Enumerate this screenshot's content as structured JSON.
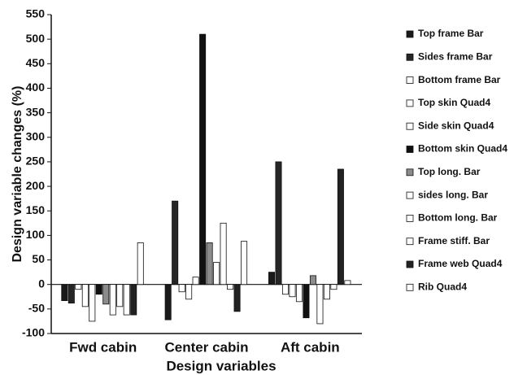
{
  "chart_data": {
    "type": "bar",
    "y_label": "Design variable changes (%)",
    "x_label": "Design variables",
    "categories": [
      "Fwd cabin",
      "Center cabin",
      "Aft cabin"
    ],
    "series": [
      {
        "name": "Top frame Bar",
        "color": "#1a1a1a",
        "values": [
          -33,
          -72,
          25
        ]
      },
      {
        "name": "Sides frame Bar",
        "color": "#262626",
        "values": [
          -38,
          170,
          250
        ]
      },
      {
        "name": "Bottom frame Bar",
        "color": "#ffffff",
        "values": [
          -10,
          -15,
          -20
        ]
      },
      {
        "name": "Top skin Quad4",
        "color": "#ffffff",
        "values": [
          -45,
          -30,
          -25
        ]
      },
      {
        "name": "Side skin Quad4",
        "color": "#ffffff",
        "values": [
          -75,
          15,
          -35
        ]
      },
      {
        "name": "Bottom skin Quad4",
        "color": "#111111",
        "values": [
          -20,
          510,
          -68
        ]
      },
      {
        "name": "Top long. Bar",
        "color": "#8c8c8c",
        "values": [
          -40,
          85,
          18
        ]
      },
      {
        "name": "sides long. Bar",
        "color": "#ffffff",
        "values": [
          -62,
          45,
          -80
        ]
      },
      {
        "name": "Bottom long. Bar",
        "color": "#ffffff",
        "values": [
          -45,
          125,
          -30
        ]
      },
      {
        "name": "Frame stiff. Bar",
        "color": "#ffffff",
        "values": [
          -62,
          -10,
          -10
        ]
      },
      {
        "name": "Frame web Quad4",
        "color": "#222222",
        "values": [
          -62,
          -55,
          235
        ]
      },
      {
        "name": "Rib Quad4",
        "color": "#ffffff",
        "values": [
          85,
          88,
          8
        ]
      }
    ],
    "ylim": [
      -100,
      550
    ],
    "yticks": [
      -100,
      -50,
      0,
      50,
      100,
      150,
      200,
      250,
      300,
      350,
      400,
      450,
      500,
      550
    ]
  }
}
